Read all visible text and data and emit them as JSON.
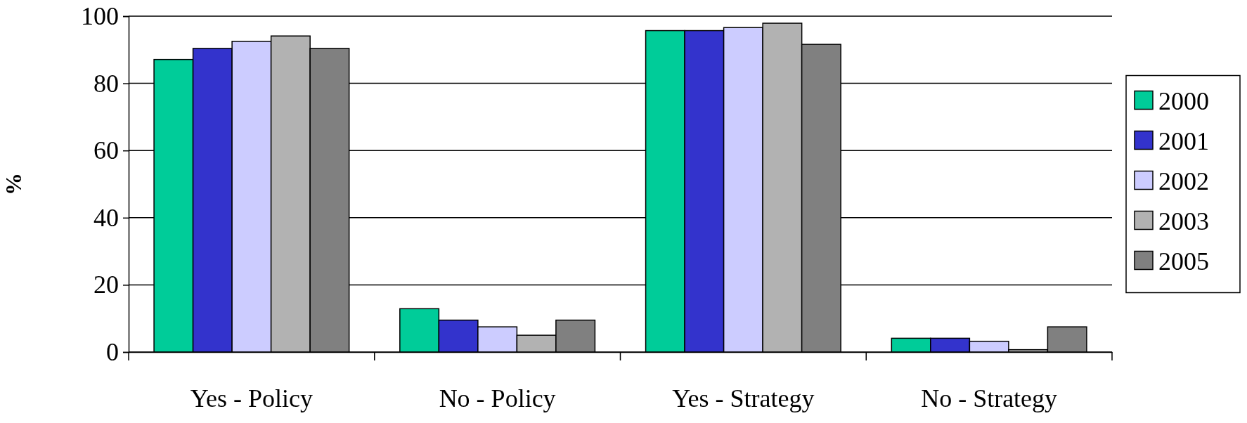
{
  "chart_data": {
    "type": "bar",
    "ylabel": "%",
    "categories": [
      "Yes - Policy",
      "No - Policy",
      "Yes - Strategy",
      "No - Strategy"
    ],
    "series": [
      {
        "name": "2000",
        "color": "#00cc99",
        "values": [
          87.1,
          12.9,
          95.7,
          4.1
        ]
      },
      {
        "name": "2001",
        "color": "#3333cc",
        "values": [
          90.4,
          9.5,
          95.7,
          4.1
        ]
      },
      {
        "name": "2002",
        "color": "#ccccff",
        "values": [
          92.5,
          7.5,
          96.6,
          3.2
        ]
      },
      {
        "name": "2003",
        "color": "#b2b2b2",
        "values": [
          94.1,
          5.0,
          97.9,
          0.7
        ]
      },
      {
        "name": "2005",
        "color": "#808080",
        "values": [
          90.4,
          9.5,
          91.6,
          7.5
        ]
      }
    ],
    "ylim": [
      0,
      100
    ],
    "yticks": [
      0,
      20,
      40,
      60,
      80,
      100
    ],
    "grid": "y",
    "legend": "right"
  }
}
